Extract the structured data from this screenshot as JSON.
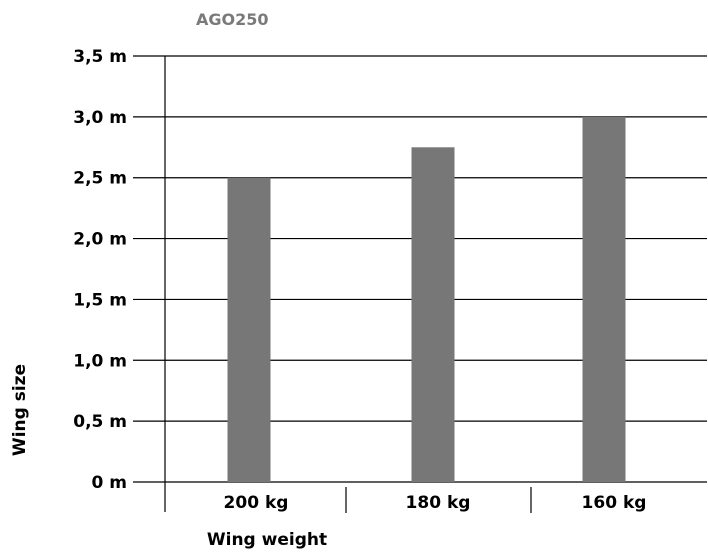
{
  "chart_data": {
    "type": "bar",
    "title": "AGO250",
    "xlabel": "Wing weight",
    "ylabel": "Wing size",
    "categories": [
      "200 kg",
      "180 kg",
      "160 kg"
    ],
    "values": [
      2.5,
      2.75,
      3.0
    ],
    "ylim": [
      0,
      3.5
    ],
    "yticks": [
      0,
      0.5,
      1.0,
      1.5,
      2.0,
      2.5,
      3.0,
      3.5
    ],
    "ytick_labels": [
      "0 m",
      "0,5 m",
      "1,0 m",
      "1,5 m",
      "2,0 m",
      "2,5 m",
      "3,0 m",
      "3,5 m"
    ],
    "grid": true,
    "legend": "none",
    "colors": {
      "bar": "#777777",
      "title": "#7a7a7a",
      "text": "#000000",
      "grid": "#000000"
    }
  }
}
